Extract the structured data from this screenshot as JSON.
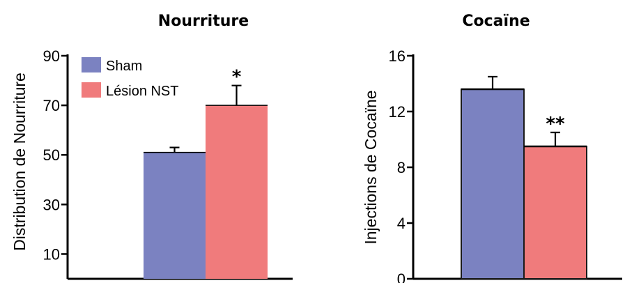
{
  "chart_data": [
    {
      "type": "bar",
      "title": "Nourriture",
      "ylabel": "Distribution de Nourriture",
      "xlabel": "",
      "ylim": [
        0,
        90
      ],
      "yticks": [
        10,
        30,
        50,
        70,
        90
      ],
      "categories": [
        "Sham",
        "Lésion NST"
      ],
      "values": [
        51,
        70
      ],
      "errors": [
        2,
        8
      ],
      "significance": [
        "",
        "*"
      ],
      "colors": [
        "#7b82c1",
        "#f07b7c"
      ],
      "legend": {
        "placement": "top-left",
        "entries": [
          {
            "label": "Sham",
            "color": "#7b82c1"
          },
          {
            "label": "Lésion NST",
            "color": "#f07b7c"
          }
        ]
      }
    },
    {
      "type": "bar",
      "title": "Cocaïne",
      "ylabel": "Injections de Cocaïne",
      "xlabel": "",
      "ylim": [
        0,
        16
      ],
      "yticks": [
        0,
        4,
        8,
        12,
        16
      ],
      "categories": [
        "Sham",
        "Lésion NST"
      ],
      "values": [
        13.6,
        9.5
      ],
      "errors": [
        0.9,
        1.0
      ],
      "significance": [
        "",
        "**"
      ],
      "colors": [
        "#7b82c1",
        "#f07b7c"
      ]
    }
  ]
}
